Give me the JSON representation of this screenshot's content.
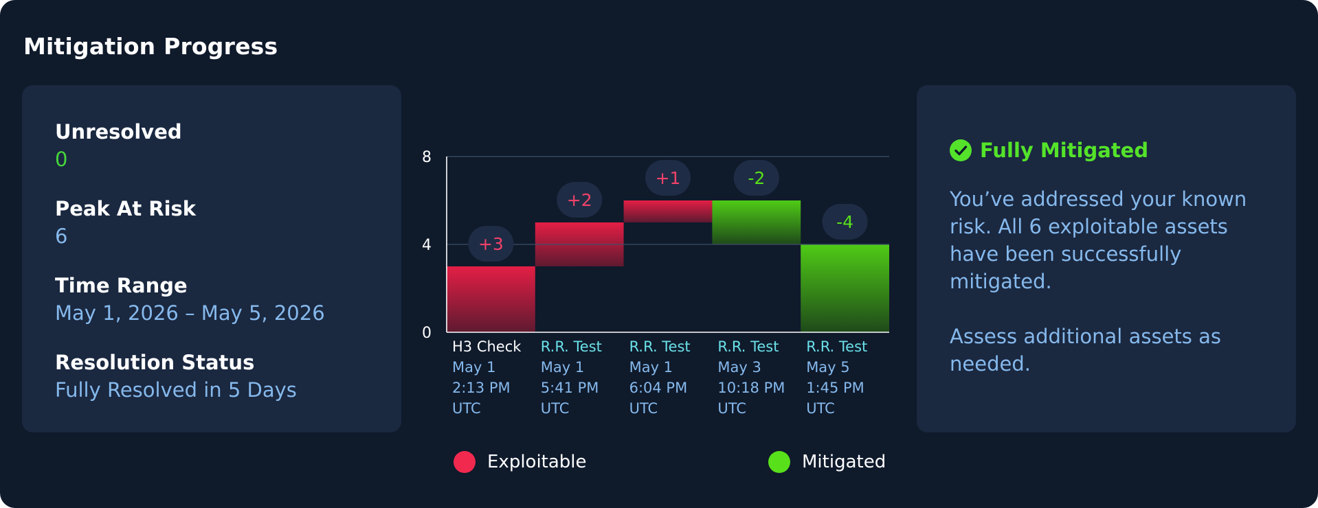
{
  "card": {
    "title": "Mitigation Progress"
  },
  "summary": {
    "unresolved": {
      "label": "Unresolved",
      "value": "0"
    },
    "peak": {
      "label": "Peak At Risk",
      "value": "6"
    },
    "range": {
      "label": "Time Range",
      "value": "May 1, 2026 – May 5, 2026"
    },
    "resolution": {
      "label": "Resolution Status",
      "value": "Fully Resolved in 5 Days"
    }
  },
  "status": {
    "icon": "check-circle-icon",
    "title": "Fully Mitigated",
    "body": "You’ve addressed your known risk. All 6 exploitable assets have been successfully mitigated.",
    "note": "Assess additional assets as needed."
  },
  "colors": {
    "exploitable": "#f2294f",
    "mitigated": "#58e01a",
    "label_blue": "#86b9ec",
    "label_cyan": "#6ae0e8"
  },
  "chart_data": {
    "type": "bar",
    "subtype": "waterfall",
    "ylim": [
      0,
      8
    ],
    "yticks": [
      0,
      4,
      8
    ],
    "grid": true,
    "legend_position": "bottom",
    "categories": [
      {
        "name": "H3 Check",
        "date": "May 1",
        "time": "2:13 PM",
        "tz": "UTC"
      },
      {
        "name": "R.R. Test",
        "date": "May 1",
        "time": "5:41 PM",
        "tz": "UTC"
      },
      {
        "name": "R.R. Test",
        "date": "May 1",
        "time": "6:04 PM",
        "tz": "UTC"
      },
      {
        "name": "R.R. Test",
        "date": "May 3",
        "time": "10:18 PM",
        "tz": "UTC"
      },
      {
        "name": "R.R. Test",
        "date": "May 5",
        "time": "1:45 PM",
        "tz": "UTC"
      }
    ],
    "deltas": [
      3,
      2,
      1,
      -2,
      -4
    ],
    "delta_labels": [
      "+3",
      "+2",
      "+1",
      "-2",
      "-4"
    ],
    "series": [
      {
        "name": "Exploitable"
      },
      {
        "name": "Mitigated"
      }
    ]
  }
}
